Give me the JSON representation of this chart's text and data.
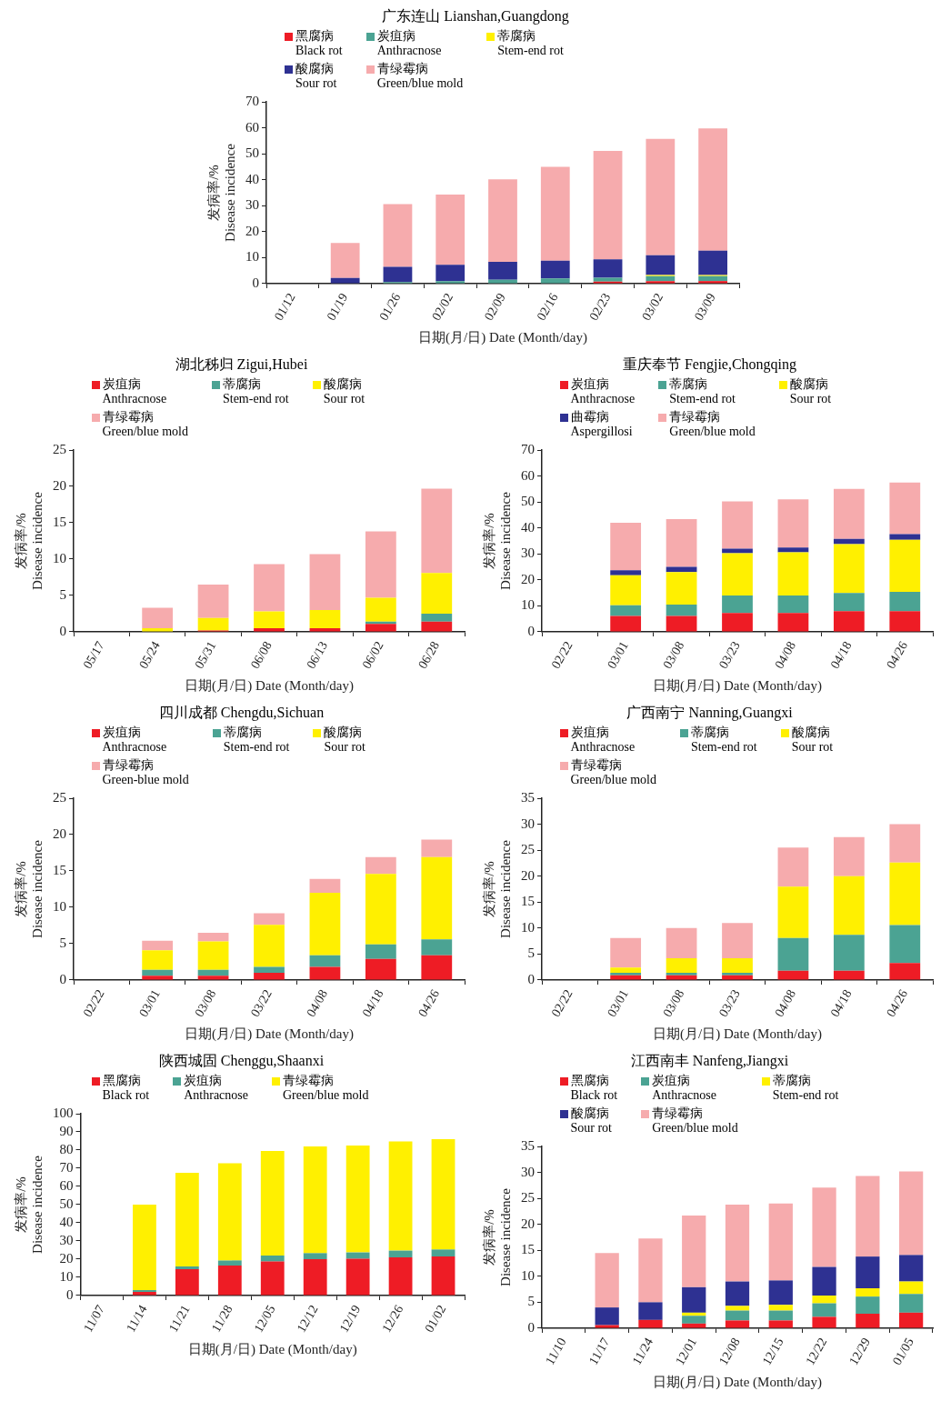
{
  "chart_data": [
    {
      "type": "bar",
      "stacked": true,
      "title": "广东连山 Lianshan,Guangdong",
      "xlabel": "日期(月/日) Date (Month/day)",
      "ylabel": "发病率/%\nDisease incidence",
      "legend": "top",
      "grid": false,
      "categories": [
        "01/12",
        "01/19",
        "01/26",
        "02/02",
        "02/09",
        "02/16",
        "02/23",
        "03/02",
        "03/09"
      ],
      "ylim": [
        0,
        70
      ],
      "yticks": [
        0,
        10,
        20,
        30,
        40,
        50,
        60,
        70
      ],
      "series": [
        {
          "name": "黑腐病\nBlack rot",
          "color": "#ee1c25",
          "values": [
            0,
            0,
            0,
            0,
            0,
            0,
            0.8,
            1.0,
            1.0
          ]
        },
        {
          "name": "炭疽病\nAnthracnose",
          "color": "#4ba393",
          "values": [
            0,
            0,
            0.6,
            1.0,
            1.5,
            2.0,
            1.5,
            1.9,
            1.9
          ]
        },
        {
          "name": "蒂腐病\nStem-end rot",
          "color": "#fff000",
          "values": [
            0,
            0,
            0,
            0,
            0,
            0,
            0,
            0.4,
            0.4
          ]
        },
        {
          "name": "酸腐病\nSour rot",
          "color": "#2e3192",
          "values": [
            0,
            2.2,
            5.9,
            6.3,
            6.9,
            6.8,
            7.1,
            7.6,
            9.4
          ]
        },
        {
          "name": "青绿霉病\nGreen/blue mold",
          "color": "#f6abad",
          "values": [
            0,
            13.5,
            24.1,
            27,
            31.8,
            36.2,
            41.7,
            44.8,
            47.1
          ]
        }
      ]
    },
    {
      "type": "bar",
      "stacked": true,
      "title": "湖北秭归 Zigui,Hubei",
      "xlabel": "日期(月/日) Date (Month/day)",
      "ylabel": "发病率/%\nDisease incidence",
      "legend": "top",
      "grid": false,
      "categories": [
        "05/17",
        "05/24",
        "05/31",
        "06/08",
        "06/13",
        "06/02",
        "06/28"
      ],
      "ylim": [
        0,
        25
      ],
      "yticks": [
        0,
        5,
        10,
        15,
        20,
        25
      ],
      "series": [
        {
          "name": "炭疽病\nAnthracnose",
          "color": "#ee1c25",
          "values": [
            0,
            0,
            0.2,
            0.5,
            0.5,
            1.1,
            1.4
          ]
        },
        {
          "name": "蒂腐病\nStem-end rot",
          "color": "#4ba393",
          "values": [
            0,
            0,
            0,
            0,
            0,
            0.3,
            1.1
          ]
        },
        {
          "name": "酸腐病\nSour rot",
          "color": "#fff000",
          "values": [
            0,
            0.5,
            1.7,
            2.3,
            2.5,
            3.3,
            5.6
          ]
        },
        {
          "name": "青绿霉病\nGreen/blue mold",
          "color": "#f6abad",
          "values": [
            0,
            2.8,
            4.6,
            6.5,
            7.7,
            9.1,
            11.6
          ]
        }
      ]
    },
    {
      "type": "bar",
      "stacked": true,
      "title": "重庆奉节 Fengjie,Chongqing",
      "xlabel": "日期(月/日) Date (Month/day)",
      "ylabel": "发病率/%\nDisease incidence",
      "legend": "top",
      "grid": false,
      "categories": [
        "02/22",
        "03/01",
        "03/08",
        "03/23",
        "04/08",
        "04/18",
        "04/26"
      ],
      "ylim": [
        0,
        70
      ],
      "yticks": [
        0,
        10,
        20,
        30,
        40,
        50,
        60,
        70
      ],
      "series": [
        {
          "name": "炭疽病\nAnthracnose",
          "color": "#ee1c25",
          "values": [
            0,
            6.1,
            6.1,
            7.3,
            7.3,
            8,
            8
          ]
        },
        {
          "name": "蒂腐病\nStem-end rot",
          "color": "#4ba393",
          "values": [
            0,
            4.1,
            4.4,
            6.7,
            6.7,
            7,
            7.4
          ]
        },
        {
          "name": "酸腐病\nSour rot",
          "color": "#fff000",
          "values": [
            0,
            11.6,
            12.5,
            16.3,
            16.6,
            18.8,
            20
          ]
        },
        {
          "name": "曲霉病\nAspergillosi",
          "color": "#2e3192",
          "values": [
            0,
            1.9,
            2.0,
            1.7,
            1.9,
            2.0,
            2.2
          ]
        },
        {
          "name": "青绿霉病\nGreen/blue mold",
          "color": "#f6abad",
          "values": [
            0,
            18.3,
            18.4,
            18.2,
            18.5,
            19.2,
            19.9
          ]
        }
      ]
    },
    {
      "type": "bar",
      "stacked": true,
      "title": "四川成都 Chengdu,Sichuan",
      "xlabel": "日期(月/日) Date (Month/day)",
      "ylabel": "发病率/%\nDisease incidence",
      "legend": "top",
      "grid": false,
      "categories": [
        "02/22",
        "03/01",
        "03/08",
        "03/22",
        "04/08",
        "04/18",
        "04/26"
      ],
      "ylim": [
        0,
        25
      ],
      "yticks": [
        0,
        5,
        10,
        15,
        20,
        25
      ],
      "series": [
        {
          "name": "炭疽病\nAnthracnose",
          "color": "#ee1c25",
          "values": [
            0,
            0.6,
            0.6,
            1.0,
            1.8,
            2.9,
            3.4
          ]
        },
        {
          "name": "蒂腐病\nStem-end rot",
          "color": "#4ba393",
          "values": [
            0,
            0.8,
            0.8,
            0.8,
            1.6,
            2.0,
            2.2
          ]
        },
        {
          "name": "酸腐病\nSour rot",
          "color": "#fff000",
          "values": [
            0,
            2.7,
            3.9,
            5.8,
            8.6,
            9.7,
            11.3
          ]
        },
        {
          "name": "青绿霉病\nGreen-blue mold",
          "color": "#f6abad",
          "values": [
            0,
            1.3,
            1.2,
            1.6,
            1.9,
            2.3,
            2.4
          ]
        }
      ]
    },
    {
      "type": "bar",
      "stacked": true,
      "title": "广西南宁 Nanning,Guangxi",
      "xlabel": "日期(月/日) Date (Month/day)",
      "ylabel": "发病率/%\nDisease incidence",
      "legend": "top",
      "grid": false,
      "categories": [
        "02/22",
        "03/01",
        "03/08",
        "03/23",
        "04/08",
        "04/18",
        "04/26"
      ],
      "ylim": [
        0,
        35
      ],
      "yticks": [
        0,
        5,
        10,
        15,
        20,
        25,
        30,
        35
      ],
      "series": [
        {
          "name": "炭疽病\nAnthracnose",
          "color": "#ee1c25",
          "values": [
            0,
            0.9,
            0.9,
            0.9,
            1.8,
            1.8,
            3.3
          ]
        },
        {
          "name": "蒂腐病\nStem-end rot",
          "color": "#4ba393",
          "values": [
            0,
            0.5,
            0.5,
            0.5,
            6.3,
            6.9,
            7.3
          ]
        },
        {
          "name": "酸腐病\nSour rot",
          "color": "#fff000",
          "values": [
            0,
            1.0,
            2.8,
            2.8,
            9.9,
            11.3,
            12
          ]
        },
        {
          "name": "青绿霉病\nGreen/blue mold",
          "color": "#f6abad",
          "values": [
            0,
            5.7,
            5.8,
            6.8,
            7.5,
            7.5,
            7.4
          ]
        }
      ]
    },
    {
      "type": "bar",
      "stacked": true,
      "title": "陕西城固 Chenggu,Shaanxi",
      "xlabel": "日期(月/日) Date (Month/day)",
      "ylabel": "发病率/%\nDisease incidence",
      "legend": "top",
      "grid": false,
      "categories": [
        "11/07",
        "11/14",
        "11/21",
        "11/28",
        "12/05",
        "12/12",
        "12/19",
        "12/26",
        "01/02"
      ],
      "ylim": [
        0,
        100
      ],
      "yticks": [
        0,
        10,
        20,
        30,
        40,
        50,
        60,
        70,
        80,
        90,
        100
      ],
      "series": [
        {
          "name": "黑腐病\nBlack rot",
          "color": "#ee1c25",
          "values": [
            0,
            2,
            14.5,
            16.5,
            18.7,
            20,
            20.2,
            21,
            21.5
          ]
        },
        {
          "name": "炭疽病\nAnthracnose",
          "color": "#4ba393",
          "values": [
            0,
            1,
            1.5,
            2.8,
            3.3,
            3.3,
            3.5,
            3.7,
            3.8
          ]
        },
        {
          "name": "青绿霉病\nGreen/blue mold",
          "color": "#fff000",
          "values": [
            0,
            47,
            51.5,
            53.5,
            57.5,
            58.7,
            58.8,
            60,
            60.7
          ]
        }
      ]
    },
    {
      "type": "bar",
      "stacked": true,
      "title": "江西南丰 Nanfeng,Jiangxi",
      "xlabel": "日期(月/日) Date (Month/day)",
      "ylabel": "发病率/%\nDisease incidence",
      "legend": "top",
      "grid": false,
      "categories": [
        "11/10",
        "11/17",
        "11/24",
        "12/01",
        "12/08",
        "12/15",
        "12/22",
        "12/29",
        "01/05"
      ],
      "ylim": [
        0,
        35
      ],
      "yticks": [
        0,
        5,
        10,
        15,
        20,
        25,
        30,
        35
      ],
      "series": [
        {
          "name": "黑腐病\nBlack rot",
          "color": "#ee1c25",
          "values": [
            0,
            0.6,
            1.6,
            0.9,
            1.5,
            1.5,
            2.2,
            2.8,
            3.0
          ]
        },
        {
          "name": "炭疽病\nAnthracnose",
          "color": "#4ba393",
          "values": [
            0,
            0,
            0,
            1.5,
            1.9,
            1.9,
            2.6,
            3.3,
            3.6
          ]
        },
        {
          "name": "蒂腐病\nStem-end rot",
          "color": "#fff000",
          "values": [
            0,
            0,
            0,
            0.6,
            0.9,
            1.1,
            1.5,
            1.6,
            2.4
          ]
        },
        {
          "name": "酸腐病\nSour rot",
          "color": "#2e3192",
          "values": [
            0,
            3.4,
            3.4,
            4.9,
            4.7,
            4.7,
            5.5,
            6.1,
            5.1
          ]
        },
        {
          "name": "青绿霉病\nGreen/blue mold",
          "color": "#f6abad",
          "values": [
            0,
            10.5,
            12.3,
            13.8,
            14.8,
            14.8,
            15.3,
            15.5,
            16.1
          ]
        }
      ]
    }
  ]
}
